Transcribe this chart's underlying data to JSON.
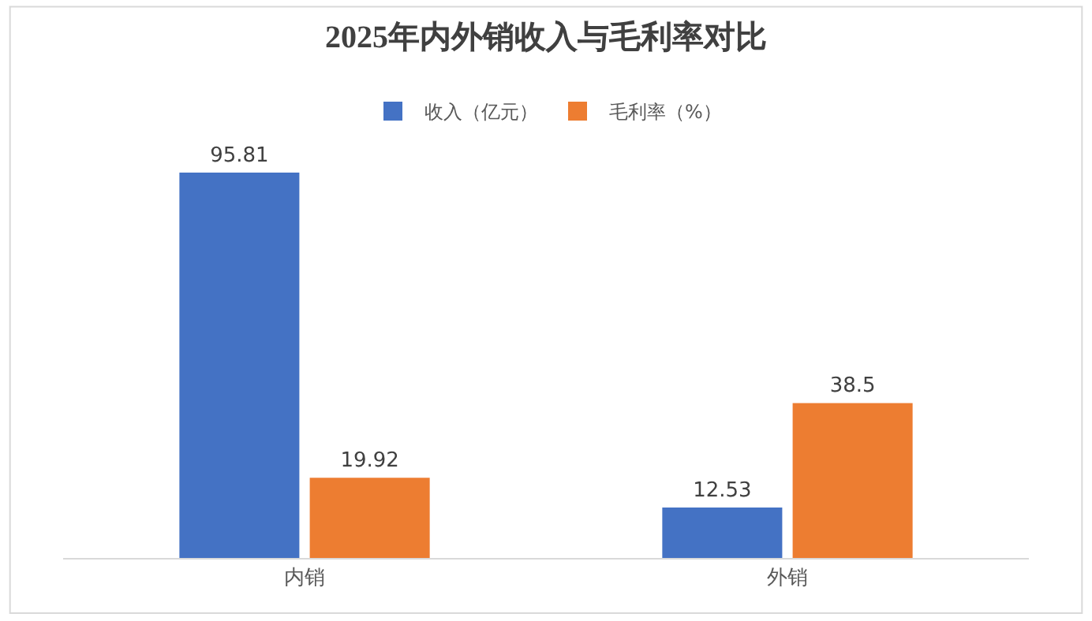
{
  "chart_data": {
    "type": "bar",
    "title": "2025年内外销收入与毛利率对比",
    "categories": [
      "内销",
      "外销"
    ],
    "series": [
      {
        "name": "收入（亿元）",
        "color": "#4472c4",
        "values": [
          95.81,
          12.53
        ]
      },
      {
        "name": "毛利率（%）",
        "color": "#ed7d31",
        "values": [
          19.92,
          38.5
        ]
      }
    ],
    "data_labels": true,
    "legend": "top"
  }
}
